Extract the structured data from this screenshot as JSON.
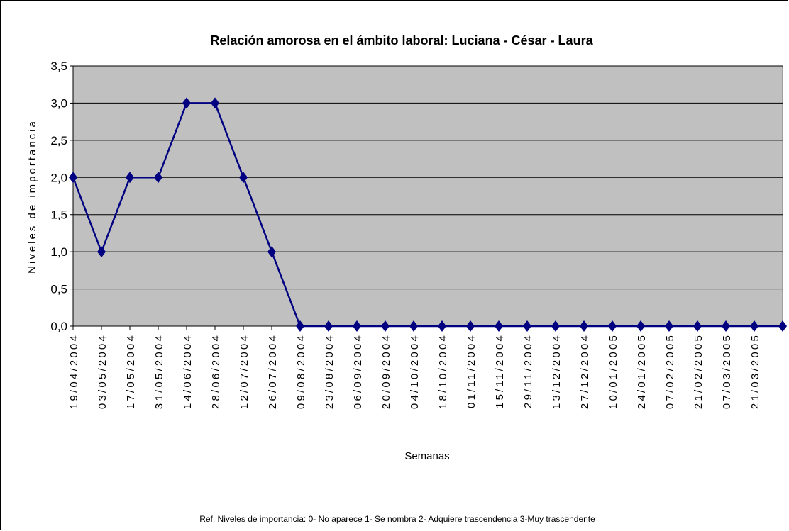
{
  "chart_data": {
    "type": "line",
    "title": "Relación amorosa en el ámbito laboral: Luciana - César - Laura",
    "x_label": "Semanas",
    "y_label": "Niveles de importancia",
    "note": "Ref. Niveles de importancia: 0- No aparece  1- Se nombra  2- Adquiere trascendencia  3-Muy trascendente",
    "categories": [
      "19/04/2004",
      "03/05/2004",
      "17/05/2004",
      "31/05/2004",
      "14/06/2004",
      "28/06/2004",
      "12/07/2004",
      "26/07/2004",
      "09/08/2004",
      "23/08/2004",
      "06/09/2004",
      "20/09/2004",
      "04/10/2004",
      "18/10/2004",
      "01/11/2004",
      "15/11/2004",
      "29/11/2004",
      "13/12/2004",
      "27/12/2004",
      "10/01/2005",
      "24/01/2005",
      "07/02/2005",
      "21/02/2005",
      "07/03/2005",
      "21/03/2005",
      null
    ],
    "values": [
      2,
      1,
      2,
      2,
      3,
      3,
      2,
      1,
      0,
      0,
      0,
      0,
      0,
      0,
      0,
      0,
      0,
      0,
      0,
      0,
      0,
      0,
      0,
      0,
      0,
      0
    ],
    "color": "#000080",
    "ylim": [
      0,
      3.5
    ],
    "yticks": [
      {
        "value": 0,
        "label": "0,0"
      },
      {
        "value": 0.5,
        "label": "0,5"
      },
      {
        "value": 1,
        "label": "1,0"
      },
      {
        "value": 1.5,
        "label": "1,5"
      },
      {
        "value": 2,
        "label": "2,0"
      },
      {
        "value": 2.5,
        "label": "2,5"
      },
      {
        "value": 3,
        "label": "3,0"
      },
      {
        "value": 3.5,
        "label": "3,5"
      }
    ],
    "grid": true,
    "plot_background": "#c0c0c0"
  }
}
